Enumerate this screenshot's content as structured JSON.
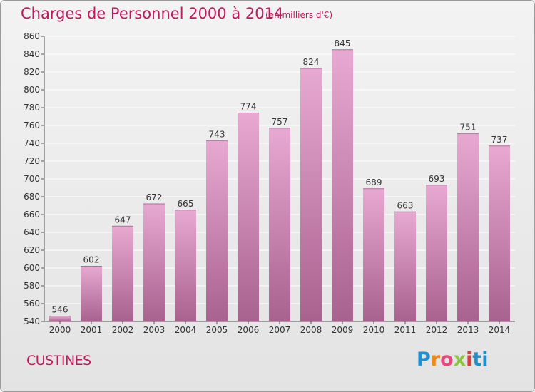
{
  "header": {
    "title": "Charges de Personnel 2000 à 2014",
    "subtitle": "(en milliers d'€)"
  },
  "footer": {
    "commune": "CUSTINES",
    "logo_text": "Proxiti"
  },
  "colors": {
    "title": "#c01a5e",
    "bar_top": "#e7a9d1",
    "bar_bottom": "#a8628e",
    "grid": "#ffffff"
  },
  "chart_data": {
    "type": "bar",
    "title": "Charges de Personnel 2000 à 2014",
    "subtitle": "(en milliers d'€)",
    "categories": [
      "2000",
      "2001",
      "2002",
      "2003",
      "2004",
      "2005",
      "2006",
      "2007",
      "2008",
      "2009",
      "2010",
      "2011",
      "2012",
      "2013",
      "2014"
    ],
    "values": [
      546,
      602,
      647,
      672,
      665,
      743,
      774,
      757,
      824,
      845,
      689,
      663,
      693,
      751,
      737
    ],
    "ylim": [
      540,
      860
    ],
    "ytick_step": 20,
    "grid": true,
    "legend": "none"
  }
}
